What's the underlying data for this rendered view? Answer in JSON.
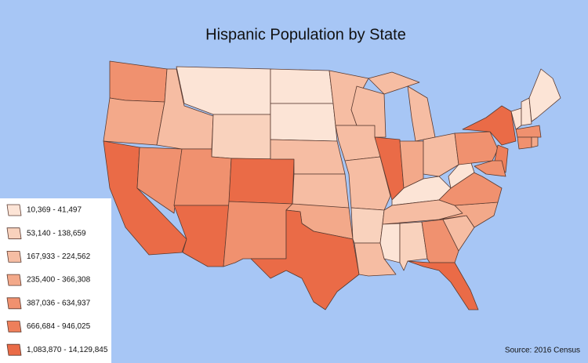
{
  "header": {
    "title": "Hispanic Population by State"
  },
  "legend": {
    "items": [
      "10,369 - 41,497",
      "53,140 - 138,659",
      "167,933 - 224,562",
      "235,400 - 366,308",
      "387,036 - 634,937",
      "666,684 - 946,025",
      "1,083,870 - 14,129,845"
    ]
  },
  "footer": {
    "source": "Source: 2016 Census"
  }
}
